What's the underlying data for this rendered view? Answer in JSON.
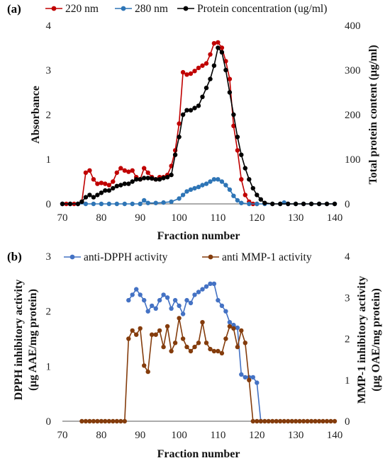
{
  "chart_data": [
    {
      "panel_label": "(a)",
      "type": "line",
      "xlabel": "Fraction number",
      "ylabel": "Absorbance",
      "ylabel_right": "Total protein content (μg/ml)",
      "xlim": [
        70,
        140
      ],
      "ylim": [
        0,
        4
      ],
      "ylim_right": [
        0,
        400
      ],
      "x_ticks": [
        "70",
        "80",
        "90",
        "100",
        "110",
        "120",
        "130",
        "140"
      ],
      "y_ticks": [
        "0",
        "1",
        "2",
        "3",
        "4"
      ],
      "y_ticks_right": [
        "0",
        "100",
        "200",
        "300",
        "400"
      ],
      "legend_position": "top",
      "grid": false,
      "series": [
        {
          "name": "220 nm",
          "axis": "left",
          "color": "#c00000",
          "x": [
            70,
            71,
            72,
            73,
            74,
            75,
            76,
            77,
            78,
            79,
            80,
            81,
            82,
            83,
            84,
            85,
            86,
            87,
            88,
            89,
            90,
            91,
            92,
            93,
            94,
            95,
            96,
            97,
            98,
            99,
            100,
            101,
            102,
            103,
            104,
            105,
            106,
            107,
            108,
            109,
            110,
            111,
            112,
            113,
            114,
            115,
            116,
            117,
            118,
            119,
            120
          ],
          "y": [
            0,
            0,
            0,
            0,
            0,
            0.05,
            0.7,
            0.75,
            0.55,
            0.45,
            0.47,
            0.45,
            0.42,
            0.5,
            0.7,
            0.8,
            0.75,
            0.72,
            0.75,
            0.6,
            0.55,
            0.8,
            0.7,
            0.6,
            0.55,
            0.6,
            0.6,
            0.65,
            0.85,
            1.2,
            1.8,
            2.95,
            2.9,
            2.92,
            2.98,
            3.05,
            3.1,
            3.15,
            3.35,
            3.6,
            3.62,
            3.5,
            3.2,
            2.8,
            1.75,
            1.2,
            0.55,
            0.2,
            0.05,
            0,
            0
          ]
        },
        {
          "name": "280 nm",
          "axis": "left",
          "color": "#2e75b6",
          "x": [
            70,
            72,
            74,
            76,
            78,
            80,
            82,
            84,
            86,
            88,
            90,
            91,
            92,
            94,
            96,
            98,
            100,
            101,
            102,
            103,
            104,
            105,
            106,
            107,
            108,
            109,
            110,
            111,
            112,
            113,
            114,
            115,
            116,
            118,
            120,
            122,
            124,
            126,
            127,
            128,
            130,
            132,
            134,
            136,
            138,
            140
          ],
          "y": [
            0,
            0,
            0,
            0,
            0,
            0,
            0,
            0,
            0,
            0,
            0,
            0.08,
            0.02,
            0.02,
            0.03,
            0.05,
            0.12,
            0.2,
            0.28,
            0.32,
            0.35,
            0.38,
            0.42,
            0.45,
            0.5,
            0.55,
            0.55,
            0.5,
            0.42,
            0.32,
            0.18,
            0.08,
            0.02,
            0,
            0,
            0,
            0,
            0,
            0.03,
            0,
            0,
            0,
            0,
            0,
            0,
            0
          ]
        },
        {
          "name": "Protein concentration (ug/ml)",
          "axis": "right",
          "color": "#000000",
          "x": [
            70,
            72,
            74,
            75,
            76,
            77,
            78,
            79,
            80,
            81,
            82,
            83,
            84,
            85,
            86,
            87,
            88,
            89,
            90,
            91,
            92,
            93,
            94,
            95,
            96,
            97,
            98,
            99,
            100,
            101,
            102,
            103,
            104,
            105,
            106,
            107,
            108,
            109,
            110,
            111,
            112,
            113,
            114,
            115,
            116,
            117,
            118,
            119,
            120,
            121,
            122,
            124,
            126,
            128,
            130,
            132,
            134,
            136,
            138,
            140
          ],
          "y": [
            0,
            0,
            0,
            5,
            15,
            20,
            15,
            20,
            25,
            30,
            30,
            35,
            40,
            42,
            45,
            45,
            50,
            55,
            55,
            58,
            58,
            57,
            55,
            55,
            58,
            60,
            65,
            110,
            150,
            200,
            210,
            210,
            215,
            220,
            240,
            260,
            280,
            310,
            350,
            340,
            300,
            250,
            200,
            150,
            110,
            80,
            55,
            35,
            20,
            10,
            2,
            0,
            0,
            0,
            0,
            0,
            0,
            0,
            0,
            0
          ]
        }
      ]
    },
    {
      "panel_label": "(b)",
      "type": "line",
      "xlabel": "Fraction number",
      "ylabel": [
        "DPPH inhibitory activity",
        "(μg AAE/mg protein)"
      ],
      "ylabel_right": [
        "MMP-1 inhibitory activity",
        "(μg OAE/mg protein)"
      ],
      "xlim": [
        70,
        140
      ],
      "ylim": [
        0,
        3
      ],
      "ylim_right": [
        0,
        4
      ],
      "x_ticks": [
        "70",
        "80",
        "90",
        "100",
        "110",
        "120",
        "130",
        "140"
      ],
      "y_ticks": [
        "0",
        "1",
        "2",
        "3"
      ],
      "y_ticks_right": [
        "0",
        "1",
        "2",
        "3",
        "4"
      ],
      "legend_position": "top",
      "grid": false,
      "series": [
        {
          "name": "anti-DPPH activity",
          "axis": "left",
          "color": "#4472c4",
          "x": [
            87,
            88,
            89,
            90,
            91,
            92,
            93,
            94,
            95,
            96,
            97,
            98,
            99,
            100,
            101,
            102,
            103,
            104,
            105,
            106,
            107,
            108,
            109,
            110,
            111,
            112,
            113,
            114,
            115,
            116,
            117,
            118,
            119,
            120,
            121
          ],
          "y": [
            2.2,
            2.3,
            2.4,
            2.3,
            2.2,
            2.0,
            2.1,
            2.05,
            2.2,
            2.3,
            2.25,
            2.05,
            2.2,
            2.1,
            1.95,
            2.2,
            2.15,
            2.3,
            2.35,
            2.4,
            2.45,
            2.5,
            2.5,
            2.2,
            2.1,
            2.0,
            1.8,
            1.75,
            1.7,
            0.85,
            0.8,
            0.8,
            0.8,
            0.7,
            0
          ]
        },
        {
          "name": "anti MMP-1 activity",
          "axis": "right",
          "color": "#843c0c",
          "x": [
            75,
            76,
            77,
            78,
            79,
            80,
            81,
            82,
            83,
            84,
            85,
            86,
            87,
            88,
            89,
            90,
            91,
            92,
            93,
            94,
            95,
            96,
            97,
            98,
            99,
            100,
            101,
            102,
            103,
            104,
            105,
            106,
            107,
            108,
            109,
            110,
            111,
            112,
            113,
            114,
            115,
            116,
            117,
            118,
            119,
            120,
            121,
            122,
            123,
            124,
            125,
            126,
            127,
            128,
            129,
            130,
            131,
            132,
            133,
            134,
            135,
            136,
            137,
            138,
            139,
            140
          ],
          "y": [
            0,
            0,
            0,
            0,
            0,
            0,
            0,
            0,
            0,
            0,
            0,
            0,
            2.0,
            2.2,
            2.1,
            2.25,
            1.35,
            1.2,
            2.1,
            2.1,
            2.2,
            1.8,
            2.3,
            1.7,
            1.9,
            2.5,
            2.0,
            1.8,
            1.7,
            1.8,
            1.9,
            2.4,
            1.9,
            1.75,
            1.7,
            1.7,
            1.65,
            2.0,
            2.3,
            2.25,
            1.8,
            2.2,
            1.9,
            1.0,
            0,
            0,
            0,
            0,
            0,
            0,
            0,
            0,
            0,
            0,
            0,
            0,
            0,
            0,
            0,
            0,
            0,
            0,
            0,
            0,
            0,
            0
          ]
        }
      ]
    }
  ]
}
